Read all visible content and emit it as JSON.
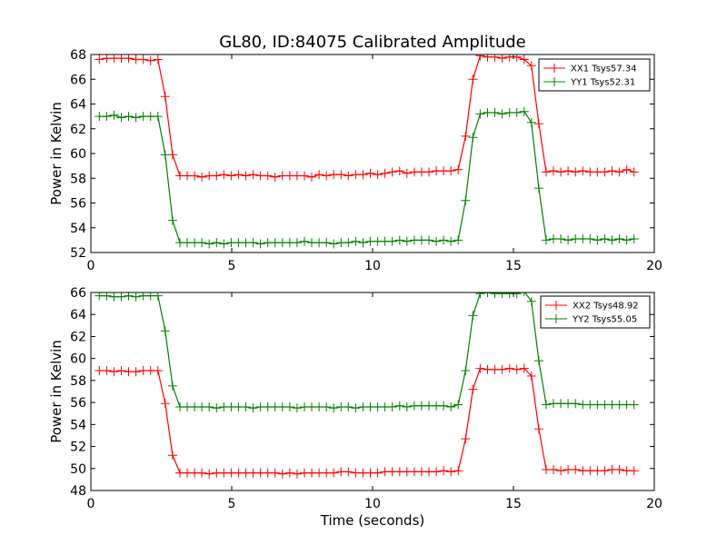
{
  "chart_data": [
    {
      "type": "line",
      "title": "GL80, ID:84075 Calibrated Amplitude",
      "xlabel": "",
      "ylabel": "Power in Kelvin",
      "xlim": [
        0,
        20
      ],
      "ylim": [
        52,
        68
      ],
      "xticks": [
        0,
        5,
        10,
        15,
        20
      ],
      "yticks": [
        52,
        54,
        56,
        58,
        60,
        62,
        64,
        66,
        68
      ],
      "legend_position": "top-right",
      "series": [
        {
          "name": "XX1 Tsys57.34",
          "color": "#ff0000",
          "x": [
            0.3,
            0.56,
            0.82,
            1.08,
            1.34,
            1.6,
            1.86,
            2.12,
            2.38,
            2.64,
            2.9,
            3.16,
            3.42,
            3.68,
            3.94,
            4.2,
            4.46,
            4.72,
            4.98,
            5.24,
            5.5,
            5.76,
            6.02,
            6.28,
            6.54,
            6.8,
            7.06,
            7.32,
            7.58,
            7.84,
            8.1,
            8.36,
            8.62,
            8.88,
            9.14,
            9.4,
            9.66,
            9.92,
            10.18,
            10.44,
            10.7,
            10.96,
            11.22,
            11.48,
            11.74,
            12.0,
            12.26,
            12.52,
            12.78,
            13.04,
            13.3,
            13.56,
            13.82,
            14.08,
            14.34,
            14.6,
            14.86,
            15.12,
            15.38,
            15.64,
            15.9,
            16.16,
            16.42,
            16.68,
            16.94,
            17.2,
            17.46,
            17.72,
            17.98,
            18.24,
            18.5,
            18.76,
            19.02,
            19.28
          ],
          "y": [
            67.6,
            67.7,
            67.7,
            67.7,
            67.7,
            67.6,
            67.6,
            67.5,
            67.6,
            64.6,
            59.9,
            58.2,
            58.2,
            58.2,
            58.1,
            58.2,
            58.2,
            58.3,
            58.2,
            58.3,
            58.2,
            58.3,
            58.2,
            58.2,
            58.1,
            58.2,
            58.2,
            58.2,
            58.2,
            58.1,
            58.3,
            58.2,
            58.3,
            58.3,
            58.2,
            58.3,
            58.3,
            58.4,
            58.3,
            58.4,
            58.5,
            58.6,
            58.4,
            58.5,
            58.5,
            58.5,
            58.6,
            58.6,
            58.6,
            58.7,
            61.4,
            66.0,
            67.9,
            67.8,
            67.8,
            67.7,
            67.8,
            67.8,
            67.6,
            67.1,
            62.4,
            58.5,
            58.6,
            58.5,
            58.6,
            58.5,
            58.6,
            58.5,
            58.5,
            58.5,
            58.6,
            58.5,
            58.7,
            58.5
          ]
        },
        {
          "name": "YY1 Tsys52.31",
          "color": "#008000",
          "x": [
            0.3,
            0.56,
            0.82,
            1.08,
            1.34,
            1.6,
            1.86,
            2.12,
            2.38,
            2.64,
            2.9,
            3.16,
            3.42,
            3.68,
            3.94,
            4.2,
            4.46,
            4.72,
            4.98,
            5.24,
            5.5,
            5.76,
            6.02,
            6.28,
            6.54,
            6.8,
            7.06,
            7.32,
            7.58,
            7.84,
            8.1,
            8.36,
            8.62,
            8.88,
            9.14,
            9.4,
            9.66,
            9.92,
            10.18,
            10.44,
            10.7,
            10.96,
            11.22,
            11.48,
            11.74,
            12.0,
            12.26,
            12.52,
            12.78,
            13.04,
            13.3,
            13.56,
            13.82,
            14.08,
            14.34,
            14.6,
            14.86,
            15.12,
            15.38,
            15.64,
            15.9,
            16.16,
            16.42,
            16.68,
            16.94,
            17.2,
            17.46,
            17.72,
            17.98,
            18.24,
            18.5,
            18.76,
            19.02,
            19.28
          ],
          "y": [
            63.0,
            63.0,
            63.1,
            62.9,
            63.0,
            62.9,
            63.0,
            63.0,
            63.0,
            59.9,
            54.6,
            52.8,
            52.8,
            52.8,
            52.8,
            52.7,
            52.8,
            52.7,
            52.8,
            52.8,
            52.8,
            52.8,
            52.7,
            52.8,
            52.8,
            52.8,
            52.8,
            52.8,
            52.9,
            52.8,
            52.8,
            52.8,
            52.7,
            52.8,
            52.8,
            52.9,
            52.8,
            52.9,
            52.9,
            52.9,
            52.9,
            53.0,
            52.9,
            53.0,
            53.0,
            53.0,
            52.9,
            53.0,
            52.9,
            53.0,
            56.2,
            61.3,
            63.2,
            63.3,
            63.3,
            63.2,
            63.3,
            63.3,
            63.4,
            62.5,
            57.2,
            53.0,
            53.1,
            53.1,
            53.0,
            53.1,
            53.1,
            53.1,
            53.0,
            53.1,
            53.0,
            53.1,
            53.0,
            53.1
          ]
        }
      ]
    },
    {
      "type": "line",
      "title": "",
      "xlabel": "Time (seconds)",
      "ylabel": "Power in Kelvin",
      "xlim": [
        0,
        20
      ],
      "ylim": [
        48,
        66
      ],
      "xticks": [
        0,
        5,
        10,
        15,
        20
      ],
      "yticks": [
        48,
        50,
        52,
        54,
        56,
        58,
        60,
        62,
        64,
        66
      ],
      "legend_position": "top-right",
      "series": [
        {
          "name": "XX2 Tsys48.92",
          "color": "#ff0000",
          "x": [
            0.3,
            0.56,
            0.82,
            1.08,
            1.34,
            1.6,
            1.86,
            2.12,
            2.38,
            2.64,
            2.9,
            3.16,
            3.42,
            3.68,
            3.94,
            4.2,
            4.46,
            4.72,
            4.98,
            5.24,
            5.5,
            5.76,
            6.02,
            6.28,
            6.54,
            6.8,
            7.06,
            7.32,
            7.58,
            7.84,
            8.1,
            8.36,
            8.62,
            8.88,
            9.14,
            9.4,
            9.66,
            9.92,
            10.18,
            10.44,
            10.7,
            10.96,
            11.22,
            11.48,
            11.74,
            12.0,
            12.26,
            12.52,
            12.78,
            13.04,
            13.3,
            13.56,
            13.82,
            14.08,
            14.34,
            14.6,
            14.86,
            15.12,
            15.38,
            15.64,
            15.9,
            16.16,
            16.42,
            16.68,
            16.94,
            17.2,
            17.46,
            17.72,
            17.98,
            18.24,
            18.5,
            18.76,
            19.02,
            19.28
          ],
          "y": [
            58.9,
            58.9,
            58.8,
            58.9,
            58.8,
            58.8,
            58.9,
            58.9,
            58.9,
            55.9,
            51.2,
            49.6,
            49.6,
            49.6,
            49.6,
            49.5,
            49.6,
            49.6,
            49.6,
            49.6,
            49.6,
            49.6,
            49.6,
            49.6,
            49.6,
            49.5,
            49.6,
            49.5,
            49.6,
            49.6,
            49.6,
            49.6,
            49.6,
            49.7,
            49.7,
            49.6,
            49.6,
            49.6,
            49.6,
            49.7,
            49.7,
            49.7,
            49.7,
            49.7,
            49.7,
            49.7,
            49.7,
            49.8,
            49.7,
            49.8,
            52.7,
            57.2,
            59.1,
            59.0,
            59.0,
            59.0,
            59.1,
            59.0,
            59.1,
            58.4,
            53.6,
            49.9,
            49.9,
            49.8,
            49.9,
            49.9,
            49.8,
            49.8,
            49.8,
            49.8,
            49.9,
            49.9,
            49.8,
            49.8
          ]
        },
        {
          "name": "YY2 Tsys55.05",
          "color": "#008000",
          "x": [
            0.3,
            0.56,
            0.82,
            1.08,
            1.34,
            1.6,
            1.86,
            2.12,
            2.38,
            2.64,
            2.9,
            3.16,
            3.42,
            3.68,
            3.94,
            4.2,
            4.46,
            4.72,
            4.98,
            5.24,
            5.5,
            5.76,
            6.02,
            6.28,
            6.54,
            6.8,
            7.06,
            7.32,
            7.58,
            7.84,
            8.1,
            8.36,
            8.62,
            8.88,
            9.14,
            9.4,
            9.66,
            9.92,
            10.18,
            10.44,
            10.7,
            10.96,
            11.22,
            11.48,
            11.74,
            12.0,
            12.26,
            12.52,
            12.78,
            13.04,
            13.3,
            13.56,
            13.82,
            14.08,
            14.34,
            14.6,
            14.86,
            15.12,
            15.38,
            15.64,
            15.9,
            16.16,
            16.42,
            16.68,
            16.94,
            17.2,
            17.46,
            17.72,
            17.98,
            18.24,
            18.5,
            18.76,
            19.02,
            19.28
          ],
          "y": [
            65.7,
            65.7,
            65.6,
            65.6,
            65.7,
            65.6,
            65.7,
            65.7,
            65.7,
            62.5,
            57.5,
            55.6,
            55.6,
            55.6,
            55.6,
            55.6,
            55.5,
            55.6,
            55.6,
            55.6,
            55.6,
            55.5,
            55.6,
            55.6,
            55.6,
            55.6,
            55.6,
            55.5,
            55.6,
            55.6,
            55.6,
            55.6,
            55.5,
            55.6,
            55.6,
            55.5,
            55.6,
            55.6,
            55.6,
            55.6,
            55.6,
            55.7,
            55.6,
            55.7,
            55.7,
            55.7,
            55.7,
            55.7,
            55.6,
            55.8,
            58.9,
            63.9,
            65.9,
            66.0,
            65.9,
            65.9,
            65.9,
            65.9,
            66.1,
            65.2,
            59.8,
            55.8,
            55.9,
            55.9,
            55.9,
            55.9,
            55.8,
            55.8,
            55.8,
            55.8,
            55.8,
            55.8,
            55.8,
            55.8
          ]
        }
      ]
    }
  ]
}
